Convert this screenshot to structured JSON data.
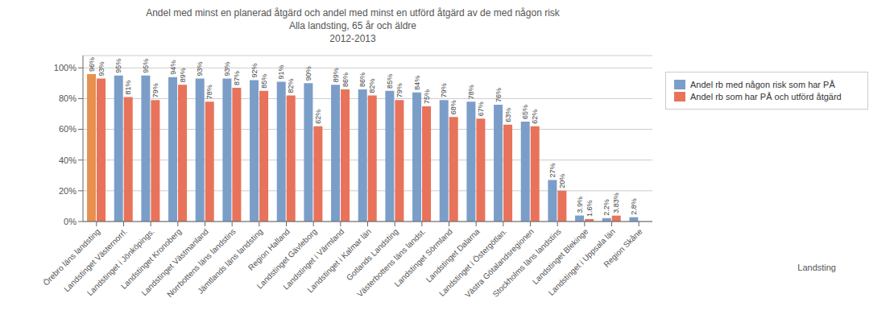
{
  "chart_data": {
    "type": "bar",
    "title": "Andel med minst en planerad åtgärd och andel med minst en utförd åtgärd av de med någon risk\nAlla landsting, 65 år och äldre\n2012-2013",
    "annotations": [
      "Landsting"
    ],
    "categories": [
      "Örebro läns landsting",
      "Landstinget Västernorrl.",
      "Landstinget i Jönköpings.",
      "Landstinget Kronoberg",
      "Landstinget Västmanland",
      "Norrbottens läns landstins",
      "Jämtlands läns landsting",
      "Region Halland",
      "Landstinget Gävleborg",
      "Landstinget i Värmland",
      "Landstinget i Kalmar län",
      "Gotlands Landsting",
      "Västerbottens läns landst.",
      "Landstinget Sörmland",
      "Landstinget Dalarna",
      "Landstinget i Östergötlan.",
      "Västra Götalandsregionen",
      "Stockholms läns landstins",
      "Landstinget Blekinge",
      "Landstinget i Uppsala län",
      "Region Skåne"
    ],
    "series": [
      {
        "name": "Andel rb med någon risk som har PÅ",
        "color": "#7B9EC9",
        "colors": [
          "#E89050",
          "#7B9EC9",
          "#7B9EC9",
          "#7B9EC9",
          "#7B9EC9",
          "#7B9EC9",
          "#7B9EC9",
          "#7B9EC9",
          "#7B9EC9",
          "#7B9EC9",
          "#7B9EC9",
          "#7B9EC9",
          "#7B9EC9",
          "#7B9EC9",
          "#7B9EC9",
          "#7B9EC9",
          "#7B9EC9",
          "#7B9EC9",
          "#7B9EC9",
          "#7B9EC9",
          "#7B9EC9"
        ],
        "values": [
          96,
          95,
          95,
          94,
          93,
          93,
          92,
          91,
          90,
          89,
          86,
          85,
          84,
          79,
          78,
          76,
          65,
          27,
          3.9,
          2.2,
          2.8
        ],
        "value_labels": [
          "96%",
          "95%",
          "95%",
          "94%",
          "93%",
          "93%",
          "92%",
          "91%",
          "90%",
          "89%",
          "86%",
          "85%",
          "84%",
          "79%",
          "78%",
          "76%",
          "65%",
          "27%",
          "3.9%",
          "2.2%",
          "2.8%"
        ]
      },
      {
        "name": "Andel rb som har PÅ och utförd åtgärd",
        "color": "#E8735A",
        "values": [
          93,
          81,
          79,
          89,
          78,
          87,
          85,
          82,
          62,
          86,
          82,
          79,
          75,
          68,
          67,
          63,
          62,
          20,
          1.6,
          3.83,
          0
        ],
        "value_labels": [
          "93%",
          "81%",
          "79%",
          "89%",
          "78%",
          "87%",
          "85%",
          "82%",
          "62%",
          "86%",
          "82%",
          "79%",
          "75%",
          "68%",
          "67%",
          "63%",
          "62%",
          "20%",
          "1.6%",
          "3.83%",
          null
        ]
      }
    ],
    "ylim": [
      0,
      108
    ],
    "yticks": [
      {
        "value": 0,
        "label": "0%"
      },
      {
        "value": 20,
        "label": "20%"
      },
      {
        "value": 40,
        "label": "40%"
      },
      {
        "value": 60,
        "label": "60%"
      },
      {
        "value": 80,
        "label": "80%"
      },
      {
        "value": 100,
        "label": "100%"
      }
    ],
    "grid": true,
    "legend": "right",
    "data_labels": true
  }
}
